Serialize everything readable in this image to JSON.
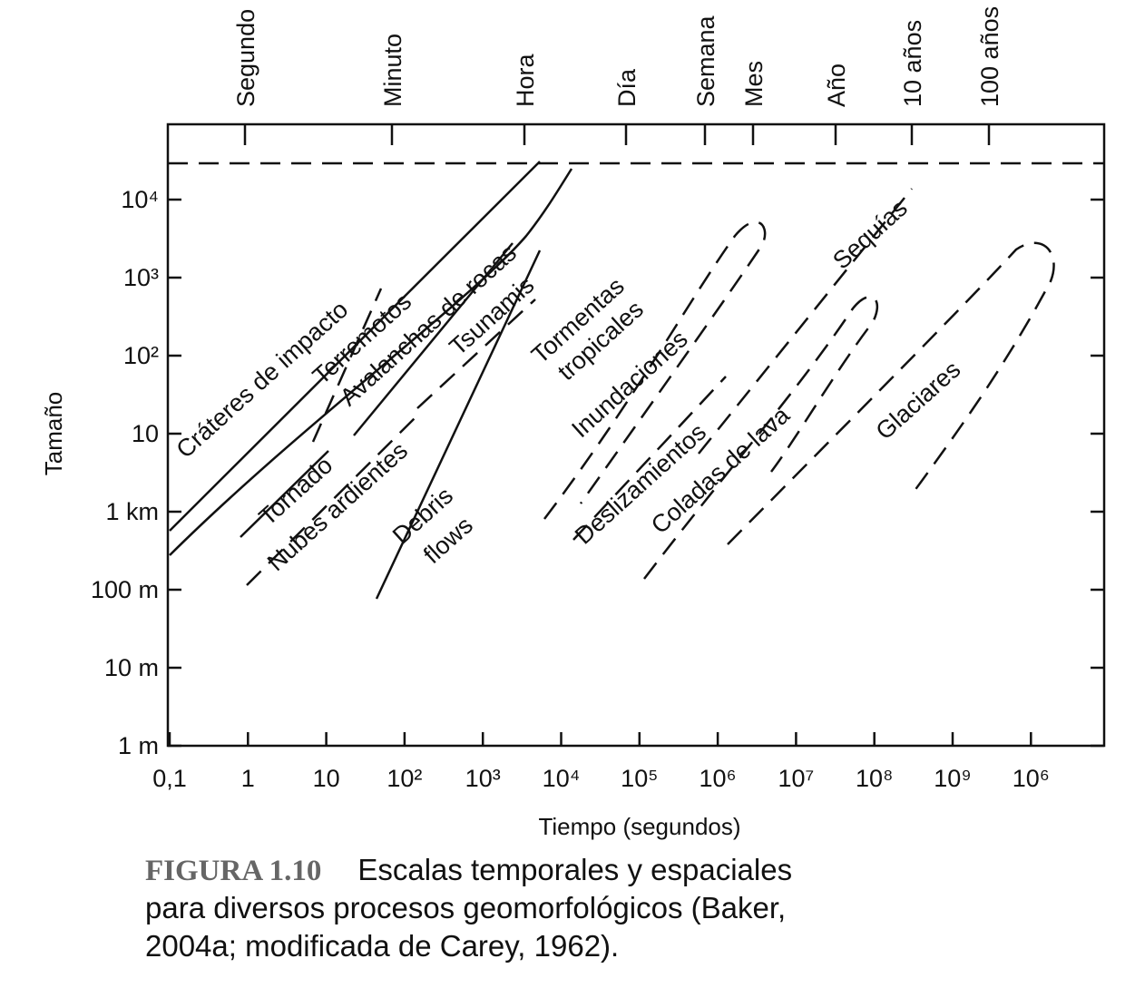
{
  "y_axis": {
    "title": "Tamaño",
    "labels": [
      "1 m",
      "10 m",
      "100 m",
      "1 km",
      "10",
      "10²",
      "10³",
      "10⁴"
    ]
  },
  "x_axis": {
    "title": "Tiempo (segundos)",
    "labels": [
      "0,1",
      "1",
      "10",
      "10²",
      "10³",
      "10⁴",
      "10⁵",
      "10⁶",
      "10⁷",
      "10⁸",
      "10⁹",
      "10⁶"
    ]
  },
  "top_axis": {
    "labels": [
      "Segundo",
      "Minuto",
      "Hora",
      "Día",
      "Semana",
      "Mes",
      "Año",
      "10 años",
      "100 años"
    ]
  },
  "processes": [
    "Cráteres de impacto",
    "Terremotos",
    "Avalanchas de rocas",
    "Tsunamis",
    "Tornado",
    "Nubes ardientes",
    "Debris",
    "flows",
    "Tormentas",
    "tropicales",
    "Inundaciones",
    "Deslizamientos",
    "Coladas de lava",
    "Sequías",
    "Glaciares"
  ],
  "caption": {
    "figure": "FIGURA 1.10",
    "lines": [
      "Escalas temporales y espaciales",
      "para diversos procesos geomorfológicos (Baker,",
      "2004a; modificada de Carey, 1962)."
    ]
  }
}
